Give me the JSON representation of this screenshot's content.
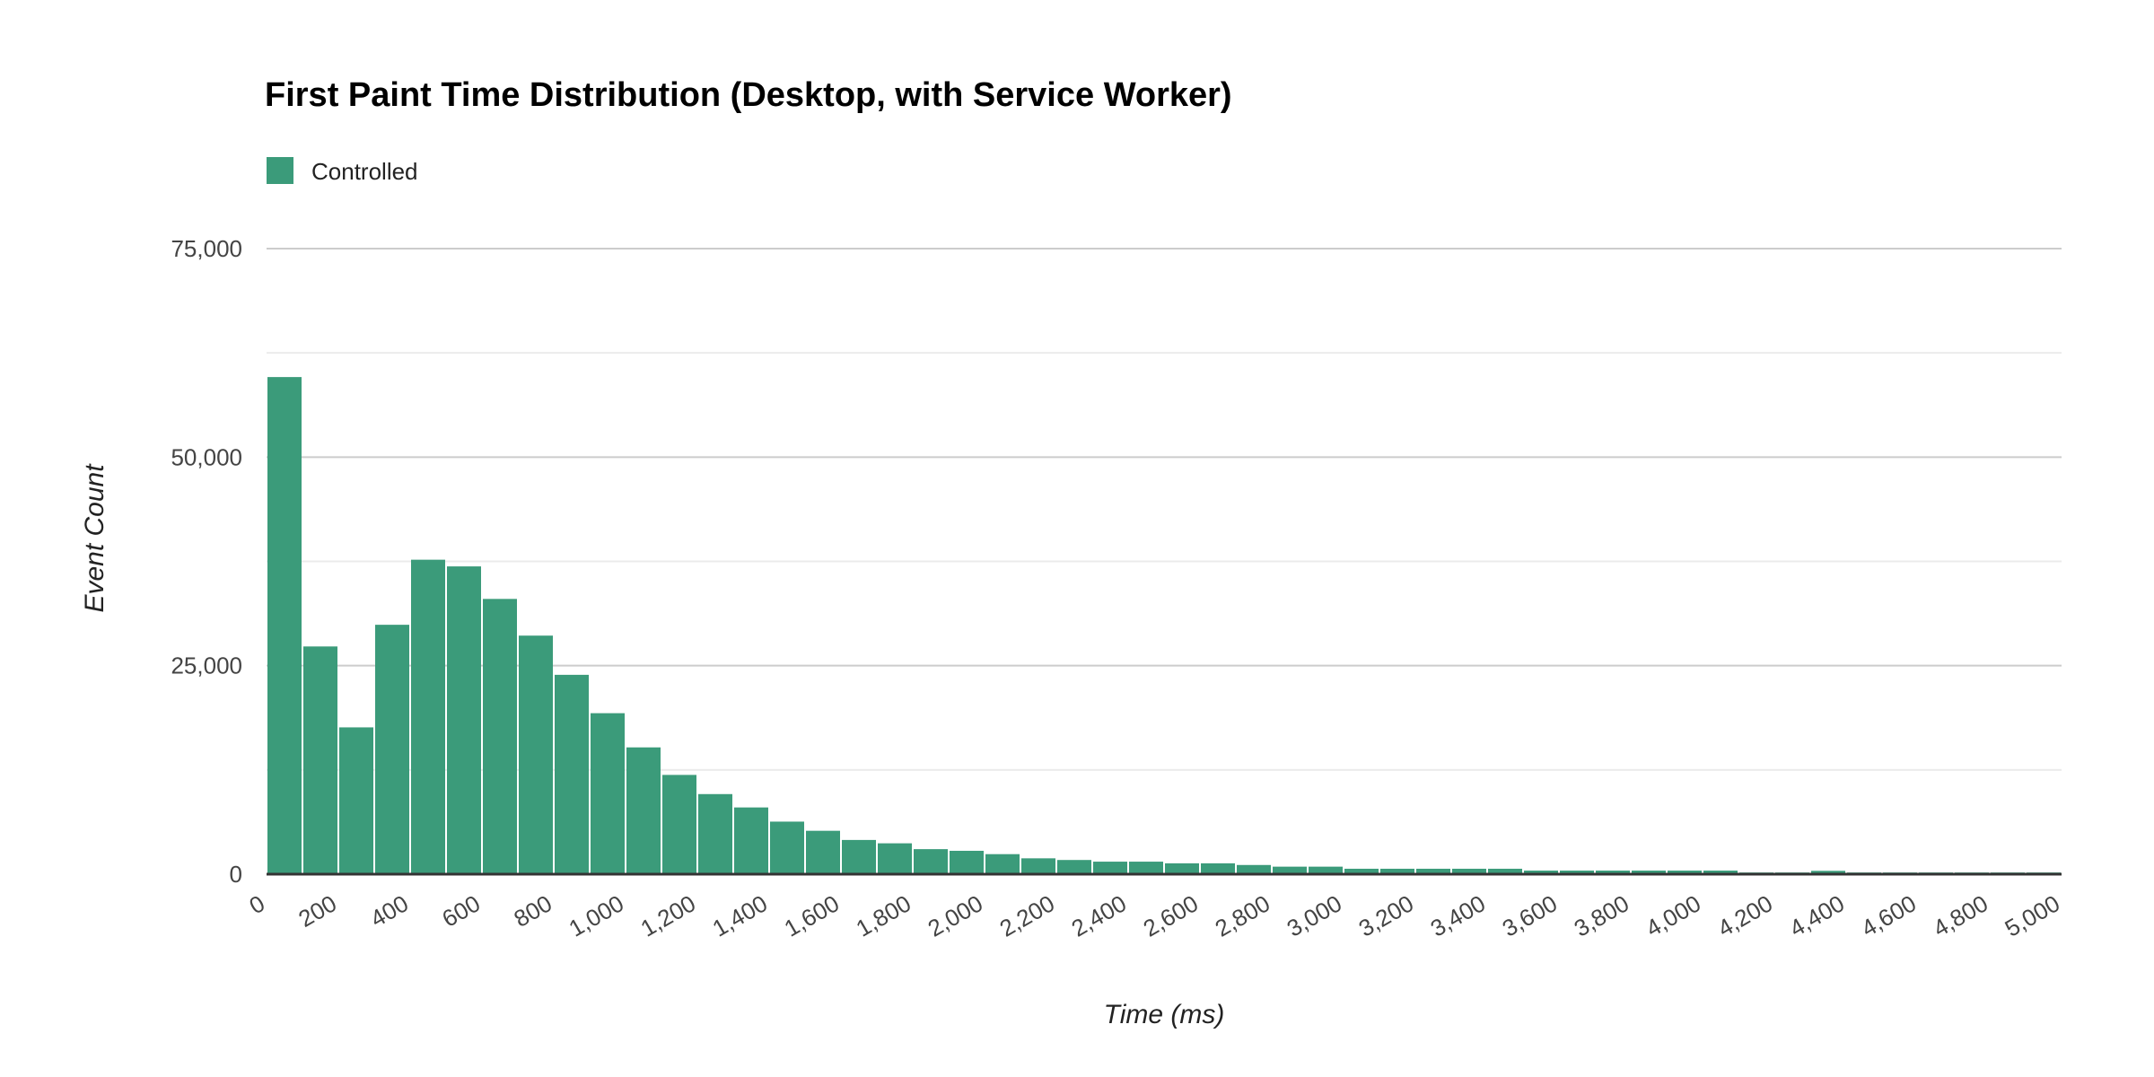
{
  "chart_data": {
    "type": "bar",
    "title": "First Paint Time Distribution (Desktop, with Service Worker)",
    "xlabel": "Time (ms)",
    "ylabel": "Event Count",
    "bin_width": 100,
    "xlim": [
      0,
      5000
    ],
    "ylim": [
      0,
      75000
    ],
    "x_ticks": [
      0,
      200,
      400,
      600,
      800,
      1000,
      1200,
      1400,
      1600,
      1800,
      2000,
      2200,
      2400,
      2600,
      2800,
      3000,
      3200,
      3400,
      3600,
      3800,
      4000,
      4200,
      4400,
      4600,
      4800,
      5000
    ],
    "x_tick_labels": [
      "0",
      "200",
      "400",
      "600",
      "800",
      "1,000",
      "1,200",
      "1,400",
      "1,600",
      "1,800",
      "2,000",
      "2,200",
      "2,400",
      "2,600",
      "2,800",
      "3,000",
      "3,200",
      "3,400",
      "3,600",
      "3,800",
      "4,000",
      "4,200",
      "4,400",
      "4,600",
      "4,800",
      "5,000"
    ],
    "y_ticks": [
      0,
      25000,
      50000,
      75000
    ],
    "y_tick_labels": [
      "0",
      "25,000",
      "50,000",
      "75,000"
    ],
    "grid": true,
    "legend_position": "top-left",
    "series": [
      {
        "name": "Controlled",
        "color": "#3b9b7a",
        "values": [
          59600,
          27300,
          17600,
          29900,
          37700,
          36900,
          33000,
          28600,
          23900,
          19300,
          15200,
          11900,
          9600,
          8000,
          6300,
          5200,
          4100,
          3700,
          3000,
          2800,
          2400,
          1900,
          1700,
          1500,
          1500,
          1300,
          1300,
          1100,
          900,
          900,
          650,
          650,
          650,
          650,
          650,
          430,
          430,
          430,
          430,
          430,
          430,
          200,
          200,
          400,
          200,
          200,
          200,
          200,
          200,
          200
        ]
      }
    ]
  }
}
